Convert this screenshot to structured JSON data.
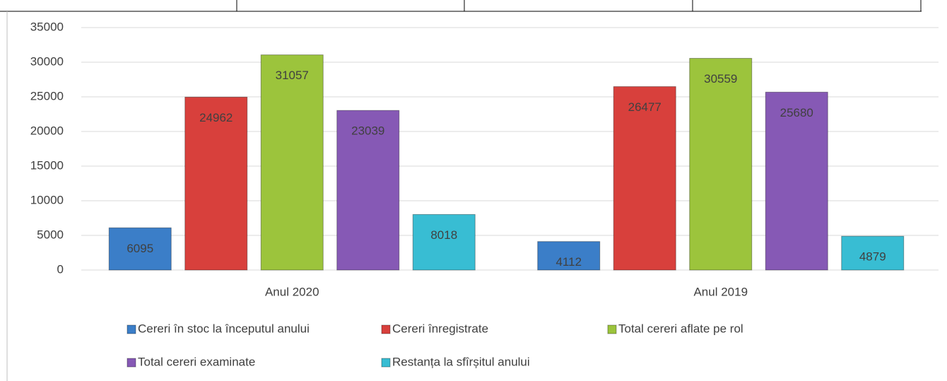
{
  "chart_data": {
    "type": "bar",
    "categories": [
      "Anul 2020",
      "Anul 2019"
    ],
    "series": [
      {
        "name": "Cereri în stoc la începutul anului",
        "color": "#3b7ec8",
        "values": [
          6095,
          4112
        ]
      },
      {
        "name": "Cereri înregistrate",
        "color": "#d8403c",
        "values": [
          24962,
          26477
        ]
      },
      {
        "name": "Total cereri aflate pe rol",
        "color": "#9cc43c",
        "values": [
          31057,
          30559
        ]
      },
      {
        "name": "Total cereri examinate",
        "color": "#8659b5",
        "values": [
          23039,
          25680
        ]
      },
      {
        "name": "Restanța la sfîrșitul anului",
        "color": "#38bdd3",
        "values": [
          8018,
          4879
        ]
      }
    ],
    "ylim": [
      0,
      35000
    ],
    "yticks": [
      0,
      5000,
      10000,
      15000,
      20000,
      25000,
      30000,
      35000
    ],
    "grid": true
  }
}
